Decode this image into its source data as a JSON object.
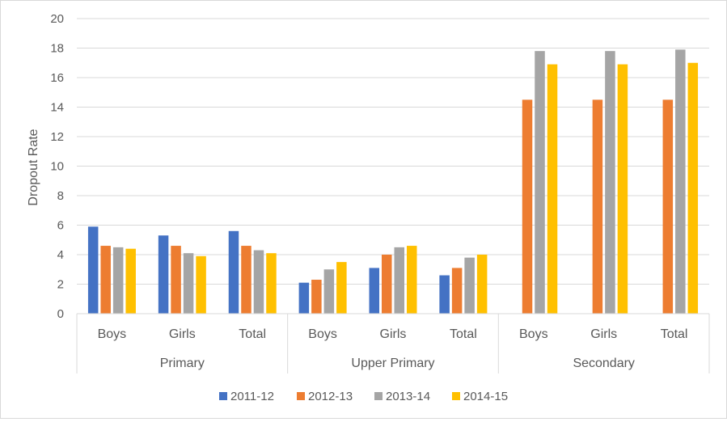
{
  "chart_data": {
    "type": "bar",
    "title": "",
    "xlabel": "",
    "ylabel": "Dropout Rate",
    "ylim": [
      0,
      20
    ],
    "yticks": [
      0,
      2,
      4,
      6,
      8,
      10,
      12,
      14,
      16,
      18,
      20
    ],
    "grid": true,
    "legend_position": "bottom",
    "groups": [
      {
        "label": "Primary",
        "categories": [
          "Boys",
          "Girls",
          "Total"
        ]
      },
      {
        "label": "Upper Primary",
        "categories": [
          "Boys",
          "Girls",
          "Total"
        ]
      },
      {
        "label": "Secondary",
        "categories": [
          "Boys",
          "Girls",
          "Total"
        ]
      }
    ],
    "series": [
      {
        "name": "2011-12",
        "color": "#4472C4",
        "values": [
          5.9,
          5.3,
          5.6,
          2.1,
          3.1,
          2.6,
          null,
          null,
          null
        ]
      },
      {
        "name": "2012-13",
        "color": "#ED7D31",
        "values": [
          4.6,
          4.6,
          4.6,
          2.3,
          4.0,
          3.1,
          14.5,
          14.5,
          14.5
        ]
      },
      {
        "name": "2013-14",
        "color": "#A5A5A5",
        "values": [
          4.5,
          4.1,
          4.3,
          3.0,
          4.5,
          3.8,
          17.8,
          17.8,
          17.9
        ]
      },
      {
        "name": "2014-15",
        "color": "#FFC000",
        "values": [
          4.4,
          3.9,
          4.1,
          3.5,
          4.6,
          4.0,
          16.9,
          16.9,
          17.0
        ]
      }
    ]
  }
}
